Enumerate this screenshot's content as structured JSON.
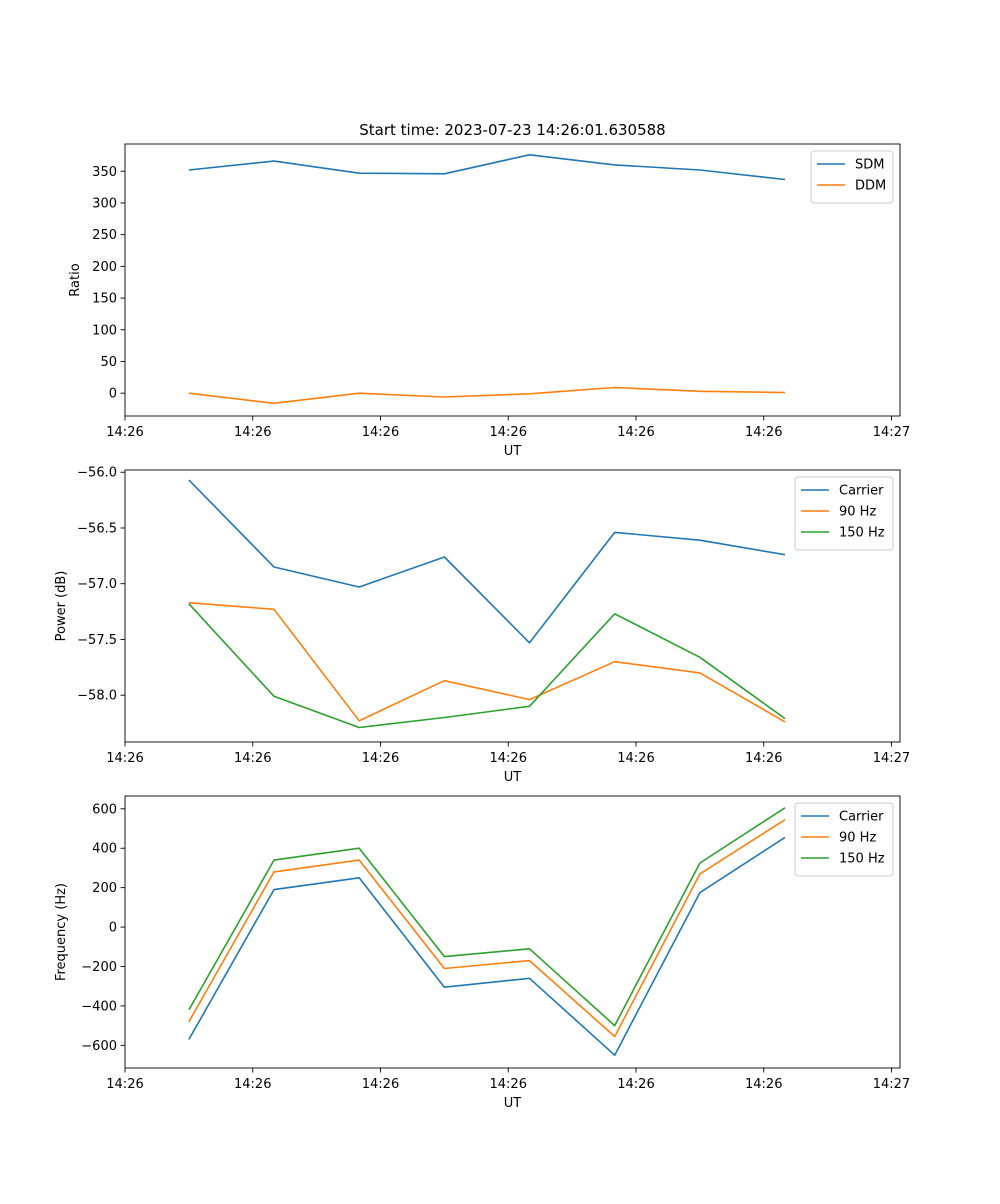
{
  "figure": {
    "title": "Start time: 2023-07-23 14:26:01.630588"
  },
  "chart_data": [
    {
      "type": "line",
      "title": "Start time: 2023-07-23 14:26:01.630588",
      "xlabel": "UT",
      "ylabel": "Ratio",
      "xlim": [
        0,
        9.1
      ],
      "ylim": [
        -36,
        393
      ],
      "x": [
        0.75,
        1.75,
        2.75,
        3.75,
        4.75,
        5.75,
        6.75,
        7.75
      ],
      "xticks": [
        0.0,
        1.5,
        3.0,
        4.5,
        6.0,
        7.5,
        9.0
      ],
      "xtick_labels": [
        "14:26",
        "14:26",
        "14:26",
        "14:26",
        "14:26",
        "14:26",
        "14:27"
      ],
      "yticks": [
        0,
        50,
        100,
        150,
        200,
        250,
        300,
        350
      ],
      "ytick_labels": [
        "0",
        "50",
        "100",
        "150",
        "200",
        "250",
        "300",
        "350"
      ],
      "legend_position": "top-right",
      "series": [
        {
          "name": "SDM",
          "color": "#1f77b4",
          "values": [
            352,
            366,
            347,
            346,
            376,
            360,
            352,
            337
          ]
        },
        {
          "name": "DDM",
          "color": "#ff7f0e",
          "values": [
            0,
            -16,
            0,
            -6,
            -1,
            9,
            3,
            1
          ]
        }
      ]
    },
    {
      "type": "line",
      "title": "",
      "xlabel": "UT",
      "ylabel": "Power (dB)",
      "xlim": [
        0,
        9.1
      ],
      "ylim": [
        -58.42,
        -55.98
      ],
      "x": [
        0.75,
        1.75,
        2.75,
        3.75,
        4.75,
        5.75,
        6.75,
        7.75
      ],
      "xticks": [
        0.0,
        1.5,
        3.0,
        4.5,
        6.0,
        7.5,
        9.0
      ],
      "xtick_labels": [
        "14:26",
        "14:26",
        "14:26",
        "14:26",
        "14:26",
        "14:26",
        "14:27"
      ],
      "yticks": [
        -58.0,
        -57.5,
        -57.0,
        -56.5,
        -56.0
      ],
      "ytick_labels": [
        "−58.0",
        "−57.5",
        "−57.0",
        "−56.5",
        "−56.0"
      ],
      "legend_position": "top-right",
      "series": [
        {
          "name": "Carrier",
          "color": "#1f77b4",
          "values": [
            -56.07,
            -56.85,
            -57.03,
            -56.76,
            -57.53,
            -56.54,
            -56.61,
            -56.74
          ]
        },
        {
          "name": "90 Hz",
          "color": "#ff7f0e",
          "values": [
            -57.17,
            -57.23,
            -58.23,
            -57.87,
            -58.04,
            -57.7,
            -57.8,
            -58.24
          ]
        },
        {
          "name": "150 Hz",
          "color": "#2ca02c",
          "values": [
            -57.18,
            -58.01,
            -58.29,
            -58.2,
            -58.1,
            -57.27,
            -57.66,
            -58.21
          ]
        }
      ]
    },
    {
      "type": "line",
      "title": "",
      "xlabel": "UT",
      "ylabel": "Frequency (Hz)",
      "xlim": [
        0,
        9.1
      ],
      "ylim": [
        -715,
        665
      ],
      "x": [
        0.75,
        1.75,
        2.75,
        3.75,
        4.75,
        5.75,
        6.75,
        7.75
      ],
      "xticks": [
        0.0,
        1.5,
        3.0,
        4.5,
        6.0,
        7.5,
        9.0
      ],
      "xtick_labels": [
        "14:26",
        "14:26",
        "14:26",
        "14:26",
        "14:26",
        "14:26",
        "14:27"
      ],
      "yticks": [
        -600,
        -400,
        -200,
        0,
        200,
        400,
        600
      ],
      "ytick_labels": [
        "−600",
        "−400",
        "−200",
        "0",
        "200",
        "400",
        "600"
      ],
      "legend_position": "top-right",
      "series": [
        {
          "name": "Carrier",
          "color": "#1f77b4",
          "values": [
            -570,
            190,
            250,
            -305,
            -260,
            -650,
            175,
            455
          ]
        },
        {
          "name": "90 Hz",
          "color": "#ff7f0e",
          "values": [
            -480,
            280,
            340,
            -210,
            -170,
            -555,
            270,
            545
          ]
        },
        {
          "name": "150 Hz",
          "color": "#2ca02c",
          "values": [
            -420,
            340,
            400,
            -150,
            -110,
            -500,
            325,
            605
          ]
        }
      ]
    }
  ]
}
